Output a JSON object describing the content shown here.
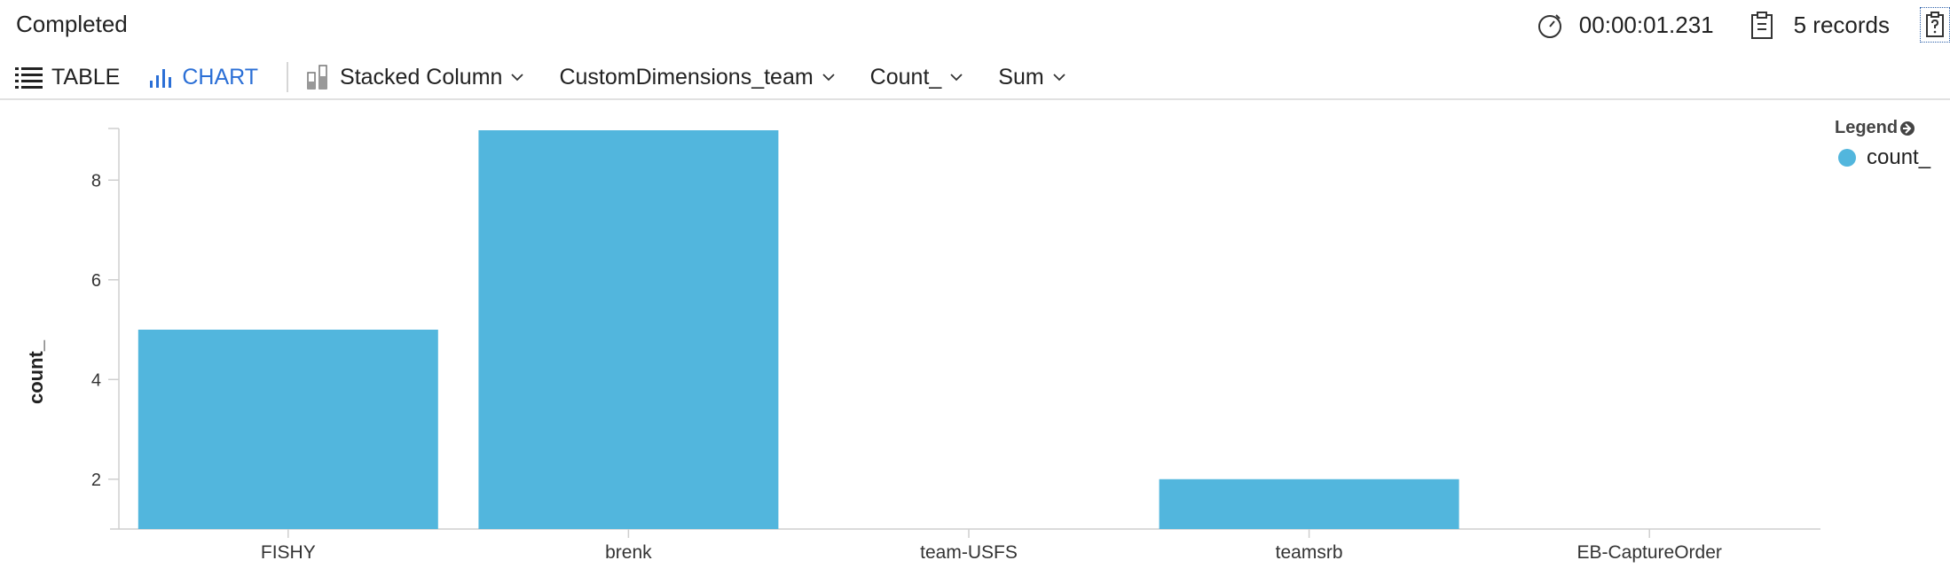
{
  "status": {
    "text": "Completed",
    "duration": "00:00:01.231",
    "records": "5 records"
  },
  "toolbar": {
    "table_label": "TABLE",
    "chart_label": "CHART",
    "chart_type": "Stacked Column",
    "x_field": "CustomDimensions_team",
    "y_field": "Count_",
    "aggregation": "Sum"
  },
  "colors": {
    "bar": "#52b6dd",
    "accent": "#2b6fd6"
  },
  "legend": {
    "title": "Legend",
    "items": [
      {
        "label": "count_"
      }
    ]
  },
  "chart_data": {
    "type": "bar",
    "stacked": true,
    "categories": [
      "FISHY",
      "brenk",
      "team-USFS",
      "teamsrb",
      "EB-CaptureOrder"
    ],
    "series": [
      {
        "name": "count_",
        "values": [
          5,
          9,
          1,
          2,
          1
        ]
      }
    ],
    "ylabel": "count_",
    "ylim": [
      1,
      9
    ],
    "yticks": [
      2,
      4,
      6,
      8
    ],
    "legend_position": "top-right",
    "grid": false
  }
}
